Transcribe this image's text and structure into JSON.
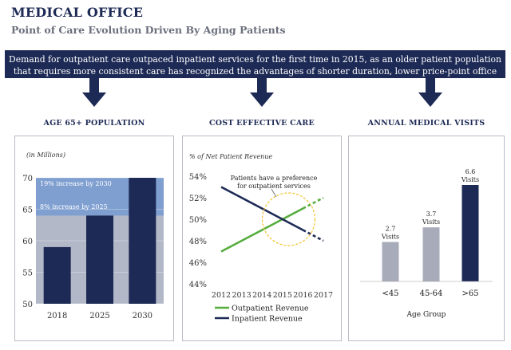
{
  "header": {
    "title": "MEDICAL OFFICE",
    "subtitle": "Point of Care Evolution Driven By Aging Patients"
  },
  "banner": {
    "line1": "Demand for outpatient care outpaced inpatient services for the first time in 2015, as an older patient population",
    "line2": "that requires more consistent care has recognized the advantages of shorter duration, lower price-point office visits"
  },
  "colors": {
    "navy": "#1d2a55",
    "light_blue": "#7f9fd0",
    "gray_band": "#b3b8c8",
    "green": "#55ad3d",
    "gray_bar": "#a8abba",
    "highlight": "#f2c12e"
  },
  "panels": {
    "age": {
      "heading": "AGE 65+ POPULATION"
    },
    "cost": {
      "heading": "COST EFFECTIVE CARE"
    },
    "visits": {
      "heading": "ANNUAL MEDICAL VISITS"
    }
  },
  "chart_data": [
    {
      "type": "bar",
      "ylabel": "(in Millions)",
      "categories": [
        "2018",
        "2025",
        "2030"
      ],
      "values": [
        59,
        64,
        70
      ],
      "ylim": [
        50,
        70
      ],
      "yticks": [
        50,
        55,
        60,
        65,
        70
      ],
      "annotations": [
        "19% increase by 2030",
        "8% increase by 2025"
      ]
    },
    {
      "type": "line",
      "ylabel": "% of Net Patient Revenue",
      "x": [
        2012,
        2013,
        2014,
        2015,
        2016,
        2017
      ],
      "ylim": [
        44,
        54
      ],
      "yticks": [
        "44%",
        "46%",
        "48%",
        "50%",
        "52%",
        "54%"
      ],
      "series": [
        {
          "name": "Outpatient Revenue",
          "values": [
            47.0,
            48.0,
            49.0,
            50.0,
            51.0,
            52.0
          ],
          "projected_from": 2016
        },
        {
          "name": "Inpatient Revenue",
          "values": [
            53.0,
            52.0,
            51.0,
            50.0,
            49.0,
            48.0
          ],
          "projected_from": 2016
        }
      ],
      "annotation": "Patients have a preference for outpatient services",
      "annotation_lines": [
        "Patients have a preference",
        "for outpatient services"
      ]
    },
    {
      "type": "bar",
      "xlabel": "Age Group",
      "categories": [
        "<45",
        "45-64",
        ">65"
      ],
      "values": [
        2.7,
        3.7,
        6.6
      ],
      "data_labels": [
        "2.7",
        "3.7",
        "6.6"
      ],
      "unit_label": "Visits"
    }
  ]
}
